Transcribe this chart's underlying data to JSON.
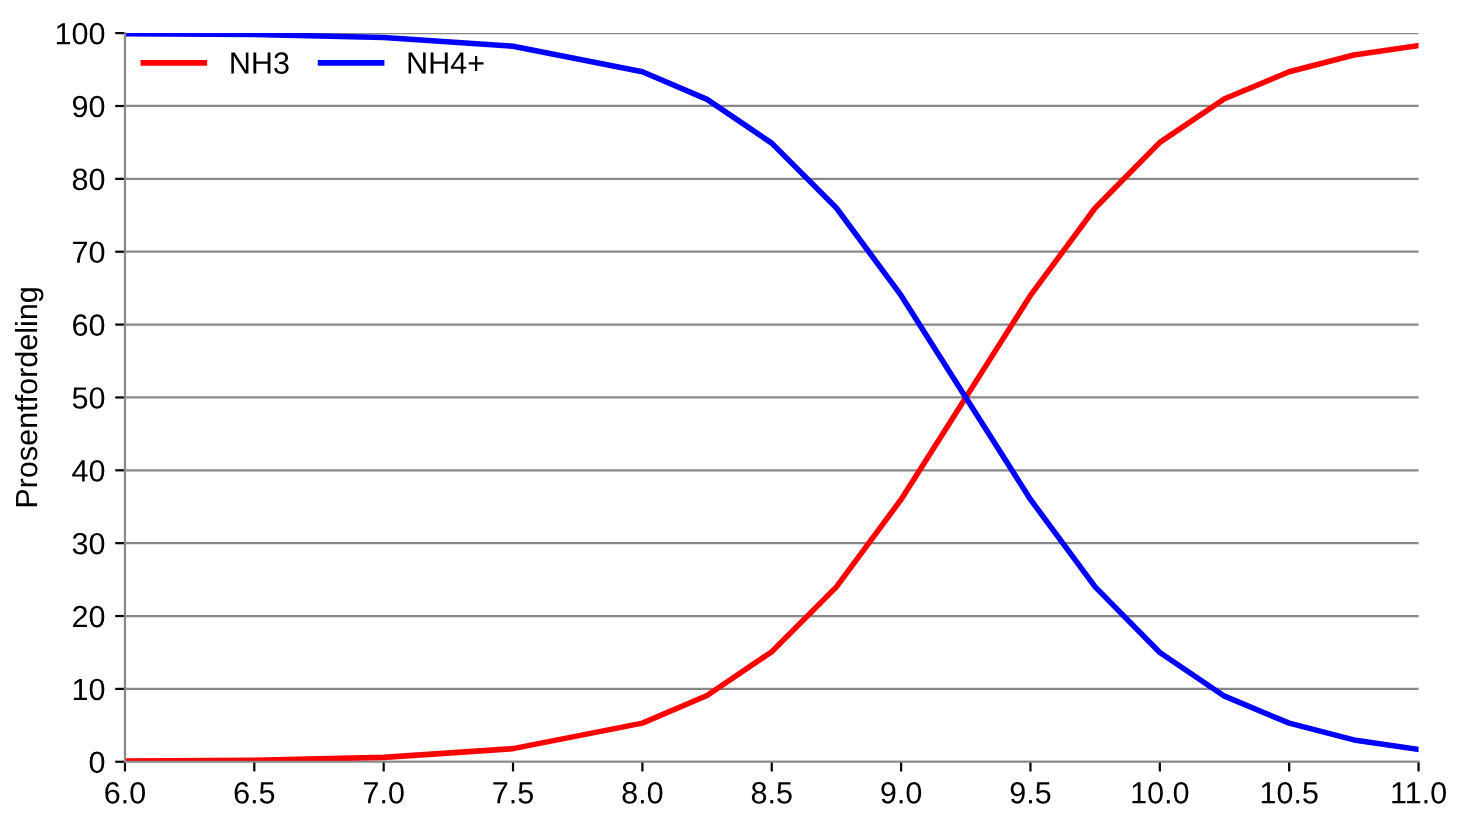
{
  "chart_data": {
    "type": "line",
    "ylabel": "Prosentfordeling",
    "x": [
      6.0,
      6.5,
      7.0,
      7.5,
      8.0,
      8.25,
      8.5,
      8.75,
      9.0,
      9.25,
      9.5,
      9.75,
      10.0,
      10.25,
      10.5,
      10.75,
      11.0
    ],
    "series": [
      {
        "name": "NH3",
        "color": "#ff0000",
        "values": [
          0.1,
          0.2,
          0.6,
          1.8,
          5.3,
          9.1,
          15.1,
          24,
          36,
          50,
          64,
          76,
          85,
          91,
          94.7,
          97,
          98.3
        ]
      },
      {
        "name": "NH4+",
        "color": "#0000ff",
        "values": [
          99.9,
          99.8,
          99.4,
          98.2,
          94.7,
          90.9,
          84.9,
          76,
          64,
          50,
          36,
          24,
          15,
          9,
          5.3,
          3,
          1.7
        ]
      }
    ],
    "xlim": [
      6,
      11
    ],
    "ylim": [
      0,
      100
    ],
    "xticks": [
      {
        "value": 6,
        "label": "6.0"
      },
      {
        "value": 6.5,
        "label": "6.5"
      },
      {
        "value": 7,
        "label": "7.0"
      },
      {
        "value": 7.5,
        "label": "7.5"
      },
      {
        "value": 8,
        "label": "8.0"
      },
      {
        "value": 8.5,
        "label": "8.5"
      },
      {
        "value": 9,
        "label": "9.0"
      },
      {
        "value": 9.5,
        "label": "9.5"
      },
      {
        "value": 10,
        "label": "10.0"
      },
      {
        "value": 10.5,
        "label": "10.5"
      },
      {
        "value": 11,
        "label": "11.0"
      }
    ],
    "yticks": [
      0,
      10,
      20,
      30,
      40,
      50,
      60,
      70,
      80,
      90,
      100
    ],
    "grid": "y",
    "legend": "top left",
    "marker": "none",
    "line_style": "solid"
  }
}
